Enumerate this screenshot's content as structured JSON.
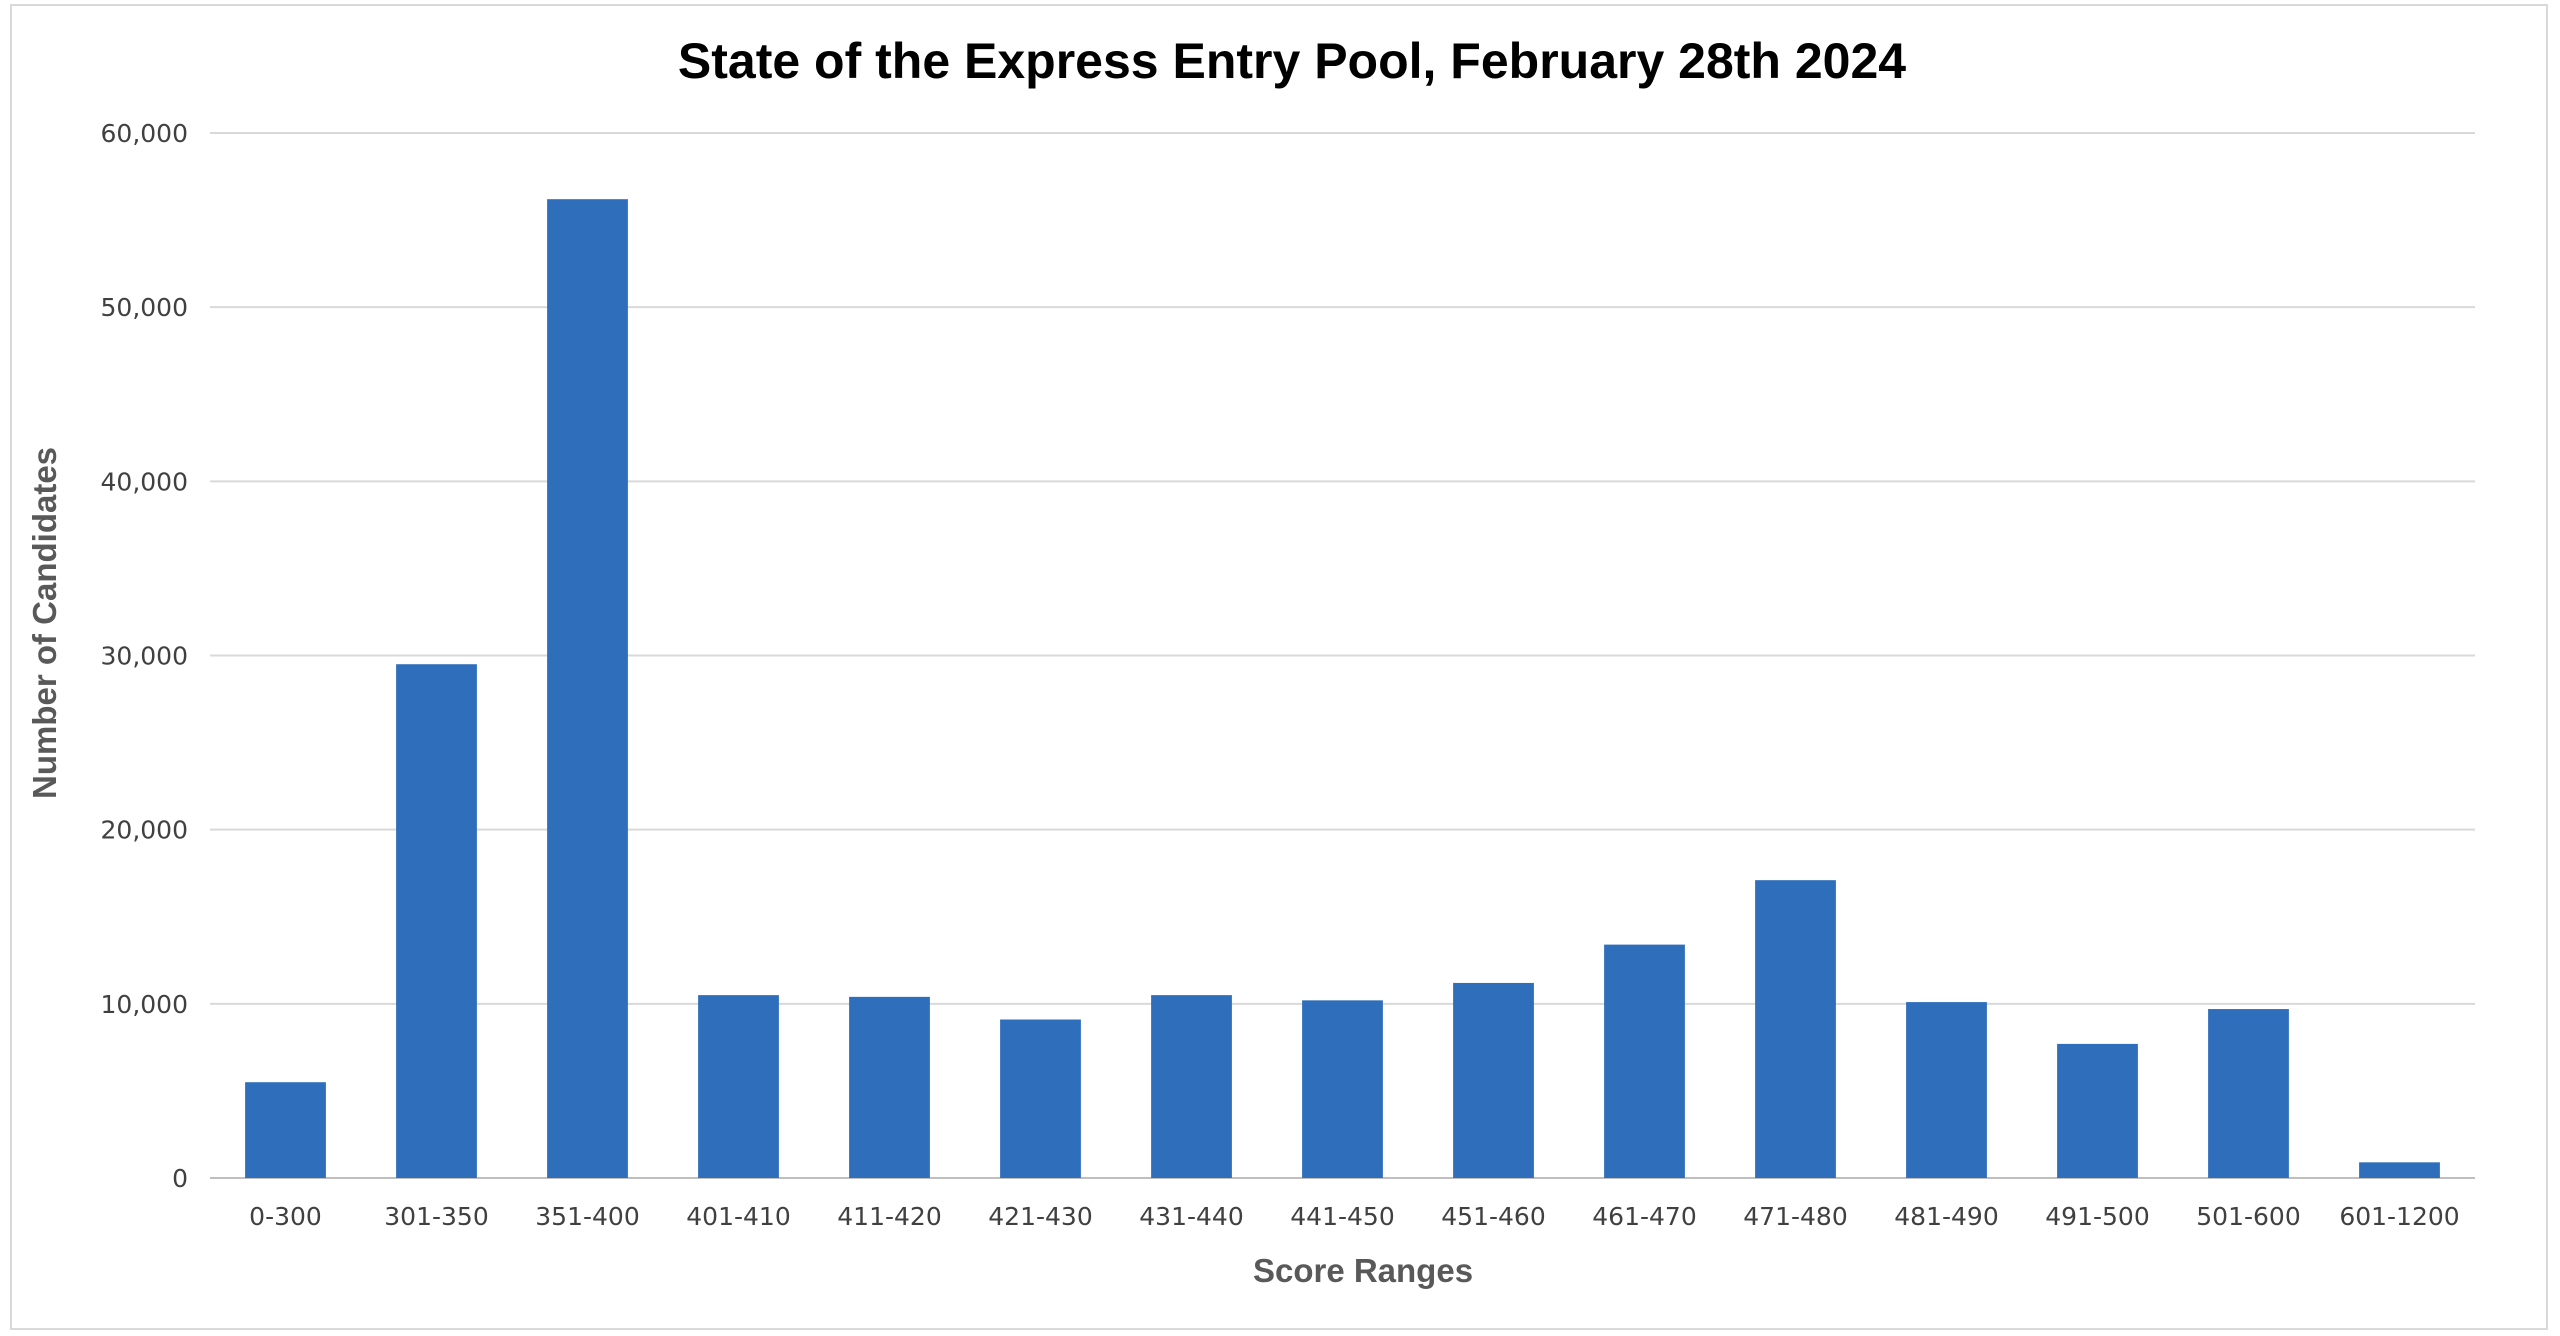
{
  "chart_data": {
    "type": "bar",
    "title": "State of the Express Entry Pool, February 28th 2024",
    "xlabel": "Score Ranges",
    "ylabel": "Number of Candidates",
    "categories": [
      "0-300",
      "301-350",
      "351-400",
      "401-410",
      "411-420",
      "421-430",
      "431-440",
      "441-450",
      "451-460",
      "461-470",
      "471-480",
      "481-490",
      "491-500",
      "501-600",
      "601-1200"
    ],
    "series": [
      {
        "values": [
          5500,
          29500,
          56200,
          10500,
          10400,
          9100,
          10500,
          10200,
          11200,
          13400,
          17100,
          10100,
          7700,
          9700,
          900
        ]
      }
    ],
    "ylim": [
      0,
      60000
    ],
    "yticks": [
      0,
      10000,
      20000,
      30000,
      40000,
      50000,
      60000
    ],
    "ytick_labels": [
      "0",
      "10,000",
      "20,000",
      "30,000",
      "40,000",
      "50,000",
      "60,000"
    ],
    "grid": true,
    "legend": "none",
    "bar_color": "#2e6ebb"
  }
}
